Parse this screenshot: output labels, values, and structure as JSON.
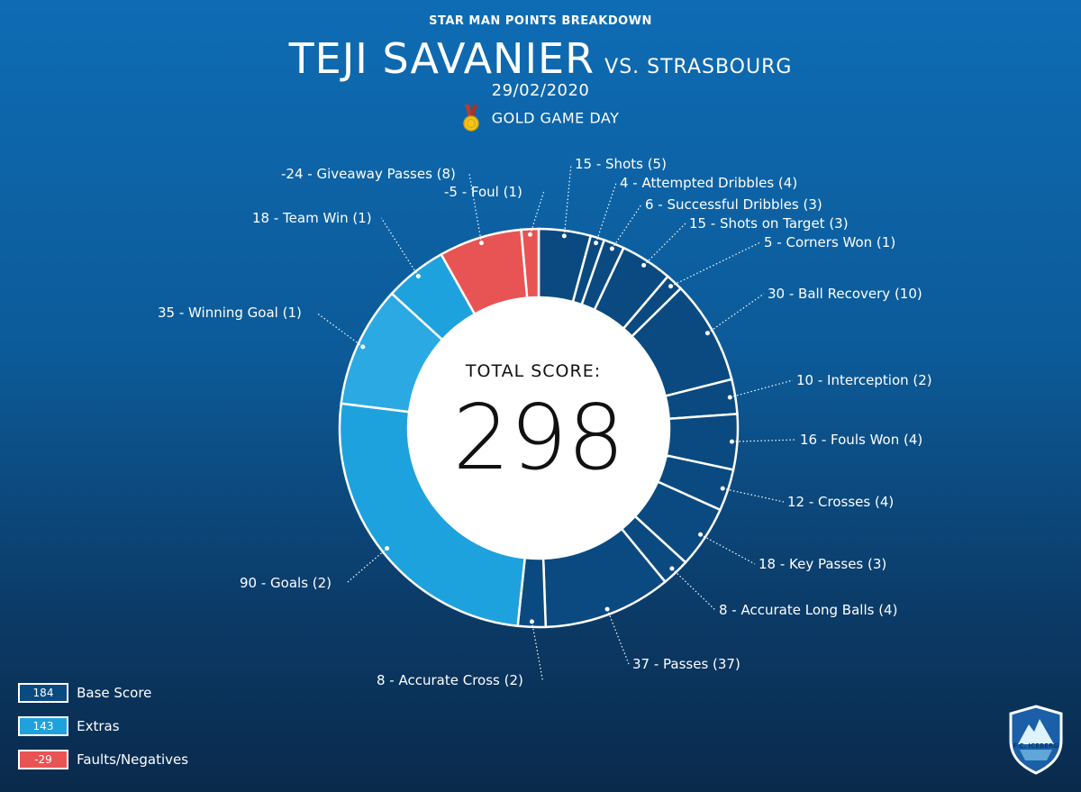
{
  "header": {
    "subtitle": "STAR MAN POINTS BREAKDOWN",
    "player": "TEJI SAVANIER",
    "opponent": "VS. STRASBOURG",
    "date": "29/02/2020",
    "game_day": "GOLD GAME DAY",
    "medal_icon": "gold-medal-icon"
  },
  "center": {
    "label": "TOTAL SCORE:",
    "value": "298"
  },
  "colors": {
    "base": "#0b4a80",
    "extras": "#1ea2dd",
    "extras_alt": "#2aa9e2",
    "negatives": "#e85454"
  },
  "chart_data": {
    "type": "pie",
    "style": "donut",
    "total": 298,
    "slices": [
      {
        "label": "15 - Shots (5)",
        "value": 15,
        "category": "base"
      },
      {
        "label": "4 - Attempted Dribbles (4)",
        "value": 4,
        "category": "base"
      },
      {
        "label": "6 - Successful Dribbles (3)",
        "value": 6,
        "category": "base"
      },
      {
        "label": "15 - Shots on Target (3)",
        "value": 15,
        "category": "base"
      },
      {
        "label": "5 - Corners Won (1)",
        "value": 5,
        "category": "base"
      },
      {
        "label": "30 - Ball Recovery (10)",
        "value": 30,
        "category": "base"
      },
      {
        "label": "10 - Interception (2)",
        "value": 10,
        "category": "base"
      },
      {
        "label": "16 - Fouls Won (4)",
        "value": 16,
        "category": "base"
      },
      {
        "label": "12 - Crosses (4)",
        "value": 12,
        "category": "base"
      },
      {
        "label": "18 - Key Passes (3)",
        "value": 18,
        "category": "base"
      },
      {
        "label": "8 - Accurate Long Balls (4)",
        "value": 8,
        "category": "base"
      },
      {
        "label": "37 - Passes (37)",
        "value": 37,
        "category": "base"
      },
      {
        "label": "8 - Accurate Cross (2)",
        "value": 8,
        "category": "base"
      },
      {
        "label": "90 - Goals (2)",
        "value": 90,
        "category": "extras"
      },
      {
        "label": "35 - Winning Goal (1)",
        "value": 35,
        "category": "extras"
      },
      {
        "label": "18 - Team Win (1)",
        "value": 18,
        "category": "extras"
      },
      {
        "label": "-24 - Giveaway Passes (8)",
        "value": -24,
        "category": "negatives"
      },
      {
        "label": "-5 - Foul (1)",
        "value": -5,
        "category": "negatives"
      }
    ]
  },
  "legend": [
    {
      "value": "184",
      "label": "Base Score",
      "category": "base"
    },
    {
      "value": "143",
      "label": "Extras",
      "category": "extras"
    },
    {
      "value": "-29",
      "label": "Faults/Negatives",
      "category": "negatives"
    }
  ],
  "logo": {
    "text": "F.C. ICEBERG",
    "icon": "iceberg-shield-icon"
  }
}
